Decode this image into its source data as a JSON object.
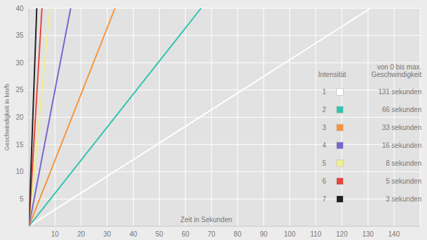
{
  "chart_data": {
    "type": "line",
    "x_label": "Zeit in Sekunden",
    "y_label": "Geschwindigkeit in km/h",
    "xlim": [
      0,
      150
    ],
    "xticks": [
      10,
      20,
      30,
      40,
      50,
      60,
      70,
      80,
      90,
      100,
      110,
      120,
      130,
      140
    ],
    "ylim": [
      0,
      40
    ],
    "yticks": [
      5,
      10,
      15,
      20,
      25,
      30,
      35,
      40
    ],
    "grid": true,
    "legend": "right",
    "legend_title": "Intensität",
    "legend_subtitle": "von 0 bis max. Geschwindigkeit",
    "series": [
      {
        "name": "1",
        "color": "#ffffff",
        "x": [
          0,
          131
        ],
        "values": [
          0,
          40
        ],
        "legend_text": "131 sekunden"
      },
      {
        "name": "2",
        "color": "#33c2b0",
        "x": [
          0,
          66
        ],
        "values": [
          0,
          40
        ],
        "legend_text": "66 sekunden"
      },
      {
        "name": "3",
        "color": "#f7943a",
        "x": [
          0,
          33
        ],
        "values": [
          0,
          40
        ],
        "legend_text": "33 sekunden"
      },
      {
        "name": "4",
        "color": "#7766cc",
        "x": [
          0,
          16
        ],
        "values": [
          0,
          40
        ],
        "legend_text": "16 sekunden"
      },
      {
        "name": "5",
        "color": "#f2ee8a",
        "x": [
          0,
          8
        ],
        "values": [
          0,
          40
        ],
        "legend_text": "8 sekunden"
      },
      {
        "name": "6",
        "color": "#e8453c",
        "x": [
          0,
          5
        ],
        "values": [
          0,
          40
        ],
        "legend_text": "5 sekunden"
      },
      {
        "name": "7",
        "color": "#222222",
        "x": [
          0,
          3
        ],
        "values": [
          0,
          40
        ],
        "legend_text": "3 sekunden"
      }
    ]
  }
}
